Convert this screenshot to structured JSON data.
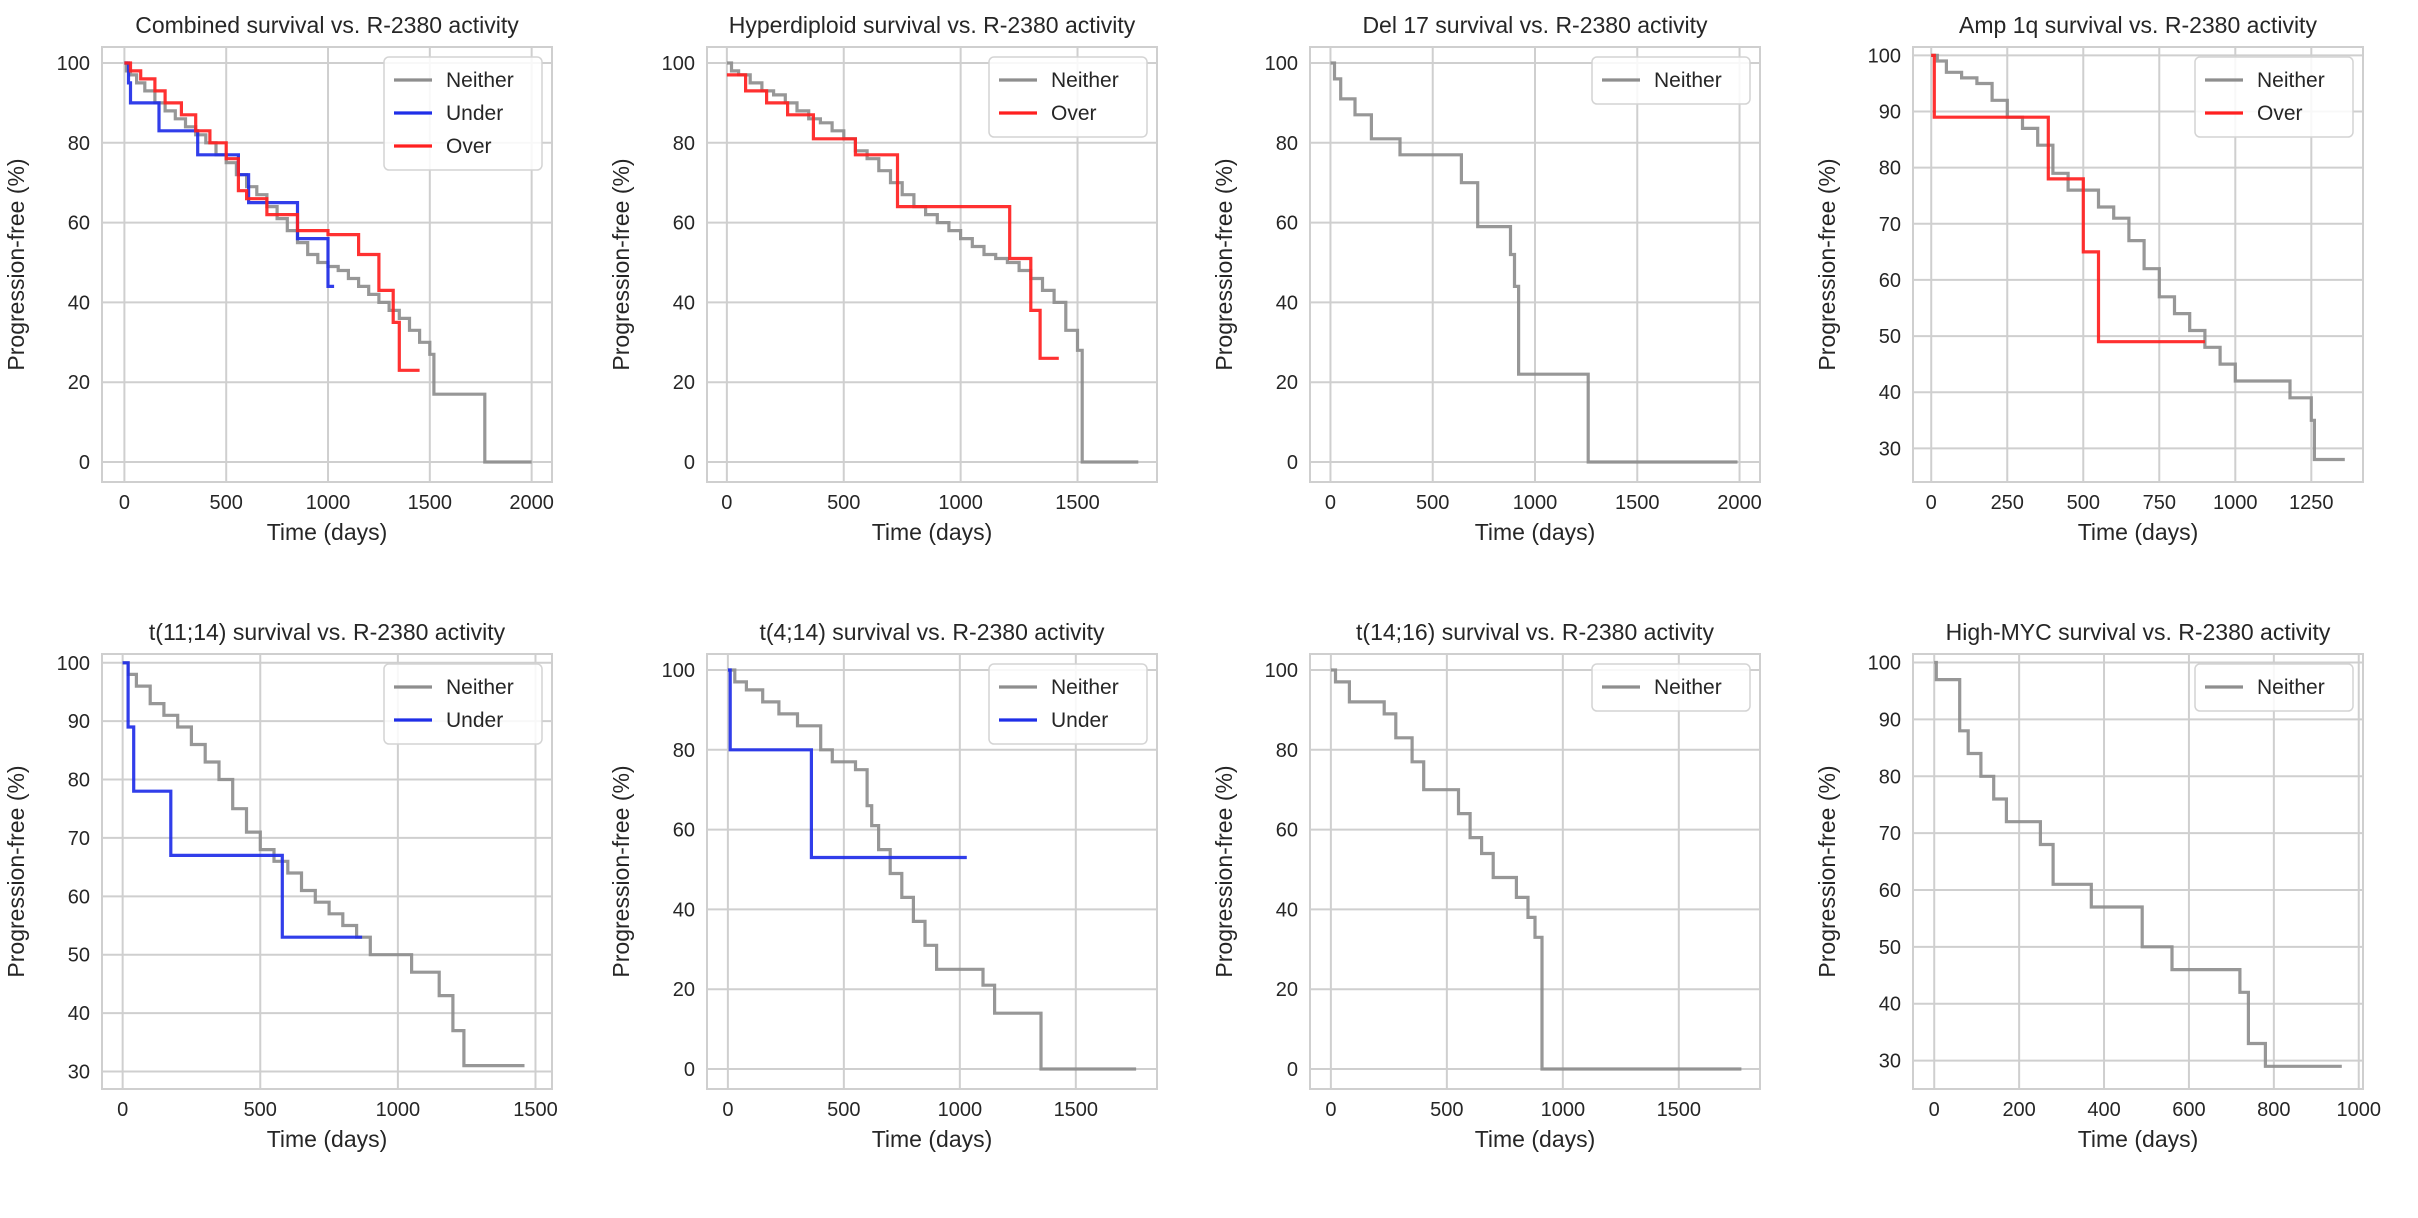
{
  "figure": {
    "legend_labels": {
      "neither": "Neither",
      "under": "Under",
      "over": "Over"
    }
  },
  "chart_data": [
    {
      "type": "line",
      "title": "Combined survival vs. R-2380 activity",
      "xlabel": "Time (days)",
      "ylabel": "Progression-free (%)",
      "xlim": [
        -110,
        2100
      ],
      "ylim": [
        -5,
        104
      ],
      "xticks": [
        0,
        500,
        1000,
        1500,
        2000
      ],
      "yticks": [
        0,
        20,
        40,
        60,
        80,
        100
      ],
      "legend": [
        "Neither",
        "Under",
        "Over"
      ],
      "series": [
        {
          "name": "Neither",
          "color": "#8e8e8e",
          "x": [
            0,
            10,
            30,
            60,
            100,
            150,
            200,
            250,
            300,
            350,
            400,
            450,
            500,
            550,
            600,
            650,
            700,
            750,
            800,
            850,
            900,
            950,
            1000,
            1050,
            1100,
            1150,
            1200,
            1250,
            1300,
            1350,
            1400,
            1450,
            1500,
            1520,
            1760,
            1770,
            2000
          ],
          "y": [
            100,
            98,
            97,
            95,
            93,
            90,
            88,
            86,
            84,
            82,
            80,
            77,
            75,
            72,
            69,
            67,
            64,
            61,
            58,
            55,
            52,
            50,
            49,
            48,
            46,
            44,
            42,
            40,
            38,
            36,
            33,
            30,
            27,
            17,
            17,
            0,
            0
          ]
        },
        {
          "name": "Under",
          "color": "#1f2ee8",
          "x": [
            0,
            20,
            30,
            170,
            360,
            560,
            610,
            850,
            1000,
            1030
          ],
          "y": [
            100,
            95,
            90,
            83,
            77,
            72,
            65,
            56,
            44,
            44
          ]
        },
        {
          "name": "Over",
          "color": "#ff1f1f",
          "x": [
            0,
            30,
            80,
            150,
            200,
            280,
            350,
            420,
            500,
            560,
            600,
            700,
            850,
            1000,
            1150,
            1250,
            1320,
            1350,
            1450
          ],
          "y": [
            100,
            98,
            96,
            93,
            90,
            87,
            83,
            80,
            76,
            68,
            66,
            62,
            58,
            57,
            52,
            43,
            35,
            23,
            23
          ]
        }
      ]
    },
    {
      "type": "line",
      "title": "Hyperdiploid survival vs. R-2380 activity",
      "xlabel": "Time (days)",
      "ylabel": "Progression-free (%)",
      "xlim": [
        -85,
        1840
      ],
      "ylim": [
        -5,
        104
      ],
      "xticks": [
        0,
        500,
        1000,
        1500
      ],
      "yticks": [
        0,
        20,
        40,
        60,
        80,
        100
      ],
      "legend": [
        "Neither",
        "Over"
      ],
      "series": [
        {
          "name": "Neither",
          "color": "#8e8e8e",
          "x": [
            0,
            20,
            50,
            100,
            150,
            200,
            250,
            300,
            350,
            400,
            450,
            500,
            550,
            600,
            650,
            700,
            750,
            800,
            850,
            900,
            950,
            1000,
            1050,
            1100,
            1150,
            1200,
            1250,
            1300,
            1350,
            1400,
            1450,
            1500,
            1520,
            1760
          ],
          "y": [
            100,
            98,
            97,
            95,
            93,
            92,
            90,
            88,
            86,
            85,
            83,
            81,
            78,
            76,
            73,
            70,
            67,
            64,
            62,
            60,
            58,
            56,
            54,
            52,
            51,
            50,
            48,
            46,
            43,
            40,
            33,
            28,
            0,
            0
          ]
        },
        {
          "name": "Over",
          "color": "#ff1f1f",
          "x": [
            0,
            80,
            170,
            260,
            370,
            550,
            730,
            1210,
            1300,
            1340,
            1420
          ],
          "y": [
            97,
            93,
            90,
            87,
            81,
            77,
            64,
            51,
            38,
            26,
            26
          ]
        }
      ]
    },
    {
      "type": "line",
      "title": "Del 17 survival vs. R-2380 activity",
      "xlabel": "Time (days)",
      "ylabel": "Progression-free (%)",
      "xlim": [
        -100,
        2100
      ],
      "ylim": [
        -5,
        104
      ],
      "xticks": [
        0,
        500,
        1000,
        1500,
        2000
      ],
      "yticks": [
        0,
        20,
        40,
        60,
        80,
        100
      ],
      "legend": [
        "Neither"
      ],
      "series": [
        {
          "name": "Neither",
          "color": "#8e8e8e",
          "x": [
            0,
            20,
            50,
            120,
            200,
            340,
            580,
            640,
            720,
            880,
            900,
            920,
            1260,
            1990
          ],
          "y": [
            100,
            96,
            91,
            87,
            81,
            77,
            77,
            70,
            59,
            52,
            44,
            22,
            0,
            0
          ]
        }
      ]
    },
    {
      "type": "line",
      "title": "Amp 1q survival vs. R-2380 activity",
      "xlabel": "Time (days)",
      "ylabel": "Progression-free (%)",
      "xlim": [
        -60,
        1420
      ],
      "ylim": [
        24,
        101.5
      ],
      "xticks": [
        0,
        250,
        500,
        750,
        1000,
        1250
      ],
      "yticks": [
        30,
        40,
        50,
        60,
        70,
        80,
        90,
        100
      ],
      "legend": [
        "Neither",
        "Over"
      ],
      "series": [
        {
          "name": "Neither",
          "color": "#8e8e8e",
          "x": [
            0,
            20,
            50,
            100,
            150,
            200,
            250,
            300,
            350,
            400,
            450,
            500,
            550,
            600,
            650,
            700,
            750,
            800,
            850,
            900,
            950,
            1000,
            1180,
            1250,
            1260,
            1360
          ],
          "y": [
            100,
            99,
            97,
            96,
            95,
            92,
            89,
            87,
            84,
            79,
            76,
            76,
            73,
            71,
            67,
            62,
            57,
            54,
            51,
            48,
            45,
            42,
            39,
            35,
            28,
            28
          ]
        },
        {
          "name": "Over",
          "color": "#ff1f1f",
          "x": [
            0,
            10,
            385,
            500,
            550,
            900
          ],
          "y": [
            100,
            89,
            78,
            65,
            49,
            49
          ]
        }
      ]
    },
    {
      "type": "line",
      "title": "t(11;14) survival vs. R-2380 activity",
      "xlabel": "Time (days)",
      "ylabel": "Progression-free (%)",
      "xlim": [
        -75,
        1560
      ],
      "ylim": [
        27,
        101.5
      ],
      "xticks": [
        0,
        500,
        1000,
        1500
      ],
      "yticks": [
        30,
        40,
        50,
        60,
        70,
        80,
        90,
        100
      ],
      "legend": [
        "Neither",
        "Under"
      ],
      "series": [
        {
          "name": "Neither",
          "color": "#8e8e8e",
          "x": [
            0,
            20,
            50,
            100,
            150,
            200,
            250,
            300,
            350,
            400,
            450,
            500,
            550,
            600,
            650,
            700,
            750,
            800,
            850,
            900,
            1000,
            1050,
            1150,
            1200,
            1240,
            1460
          ],
          "y": [
            100,
            98,
            96,
            93,
            91,
            89,
            86,
            83,
            80,
            75,
            71,
            68,
            66,
            64,
            61,
            59,
            57,
            55,
            53,
            50,
            50,
            47,
            43,
            37,
            31,
            31
          ]
        },
        {
          "name": "Under",
          "color": "#1f2ee8",
          "x": [
            0,
            20,
            40,
            175,
            580,
            870
          ],
          "y": [
            100,
            89,
            78,
            67,
            53,
            53
          ]
        }
      ]
    },
    {
      "type": "line",
      "title": "t(4;14) survival vs. R-2380 activity",
      "xlabel": "Time (days)",
      "ylabel": "Progression-free (%)",
      "xlim": [
        -90,
        1850
      ],
      "ylim": [
        -5,
        104
      ],
      "xticks": [
        0,
        500,
        1000,
        1500
      ],
      "yticks": [
        0,
        20,
        40,
        60,
        80,
        100
      ],
      "legend": [
        "Neither",
        "Under"
      ],
      "series": [
        {
          "name": "Neither",
          "color": "#8e8e8e",
          "x": [
            0,
            30,
            80,
            150,
            220,
            300,
            400,
            450,
            550,
            600,
            620,
            650,
            700,
            750,
            800,
            850,
            900,
            950,
            1100,
            1150,
            1350,
            1760
          ],
          "y": [
            100,
            97,
            95,
            92,
            89,
            86,
            80,
            77,
            75,
            66,
            61,
            55,
            49,
            43,
            37,
            31,
            25,
            25,
            21,
            14,
            0,
            0
          ]
        },
        {
          "name": "Under",
          "color": "#1f2ee8",
          "x": [
            0,
            10,
            360,
            1030
          ],
          "y": [
            100,
            80,
            53,
            53
          ]
        }
      ]
    },
    {
      "type": "line",
      "title": "t(14;16) survival vs. R-2380 activity",
      "xlabel": "Time (days)",
      "ylabel": "Progression-free (%)",
      "xlim": [
        -90,
        1850
      ],
      "ylim": [
        -5,
        104
      ],
      "xticks": [
        0,
        500,
        1000,
        1500
      ],
      "yticks": [
        0,
        20,
        40,
        60,
        80,
        100
      ],
      "legend": [
        "Neither"
      ],
      "series": [
        {
          "name": "Neither",
          "color": "#8e8e8e",
          "x": [
            0,
            20,
            80,
            230,
            280,
            350,
            400,
            550,
            600,
            650,
            700,
            800,
            850,
            880,
            910,
            920,
            1770
          ],
          "y": [
            100,
            97,
            92,
            89,
            83,
            77,
            70,
            64,
            58,
            54,
            48,
            43,
            38,
            33,
            0,
            0,
            0
          ]
        }
      ]
    },
    {
      "type": "line",
      "title": "High-MYC survival vs. R-2380 activity",
      "xlabel": "Time (days)",
      "ylabel": "Progression-free (%)",
      "xlim": [
        -50,
        1010
      ],
      "ylim": [
        25,
        101.5
      ],
      "xticks": [
        0,
        200,
        400,
        600,
        800,
        1000
      ],
      "yticks": [
        30,
        40,
        50,
        60,
        70,
        80,
        90,
        100
      ],
      "legend": [
        "Neither"
      ],
      "series": [
        {
          "name": "Neither",
          "color": "#8e8e8e",
          "x": [
            0,
            5,
            60,
            80,
            110,
            140,
            170,
            250,
            280,
            370,
            490,
            560,
            720,
            740,
            780,
            960
          ],
          "y": [
            100,
            97,
            88,
            84,
            80,
            76,
            72,
            68,
            61,
            57,
            50,
            46,
            42,
            33,
            29,
            29
          ]
        }
      ]
    }
  ]
}
